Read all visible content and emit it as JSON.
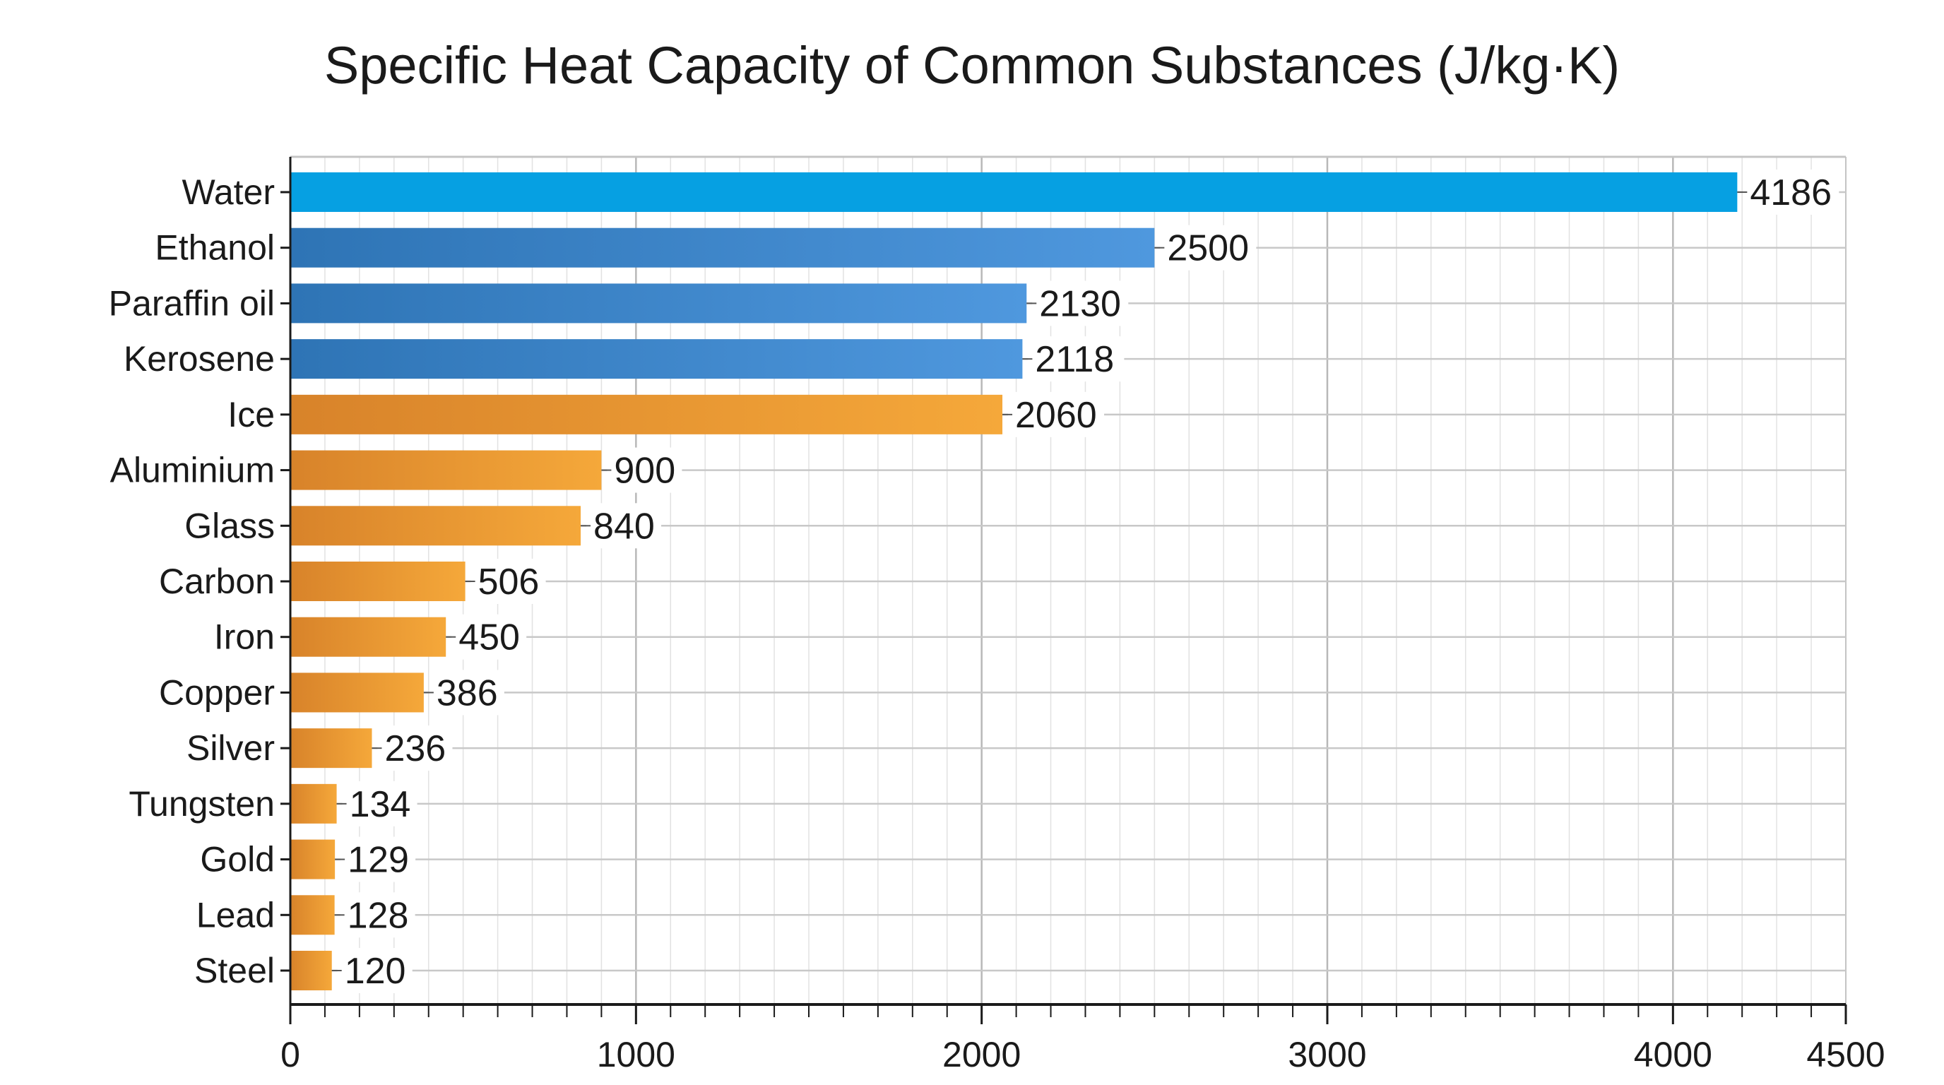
{
  "chart_data": {
    "type": "bar",
    "orientation": "horizontal",
    "title": "Specific Heat Capacity of Common Substances (J/kg·K)",
    "xlabel": "",
    "ylabel": "",
    "categories": [
      "Water",
      "Ethanol",
      "Paraffin oil",
      "Kerosene",
      "Ice",
      "Aluminium",
      "Glass",
      "Carbon",
      "Iron",
      "Copper",
      "Silver",
      "Tungsten",
      "Gold",
      "Lead",
      "Steel"
    ],
    "values": [
      4186,
      2500,
      2130,
      2118,
      2060,
      900,
      840,
      506,
      450,
      386,
      236,
      134,
      129,
      128,
      120
    ],
    "data_labels": [
      "4186",
      "2500",
      "2130",
      "2118",
      "2060",
      "900",
      "840",
      "506",
      "450",
      "386",
      "236",
      "134",
      "129",
      "128",
      "120"
    ],
    "bar_groups": [
      "water",
      "blue",
      "blue",
      "blue",
      "orange",
      "orange",
      "orange",
      "orange",
      "orange",
      "orange",
      "orange",
      "orange",
      "orange",
      "orange",
      "orange"
    ],
    "xlim": [
      0,
      4500
    ],
    "xticks": [
      0,
      1000,
      2000,
      3000,
      4000,
      4500
    ],
    "xtick_labels": [
      "0",
      "1000",
      "2000",
      "3000",
      "4000",
      "4500"
    ],
    "grid": true,
    "legend": "none",
    "colors": {
      "water": "#06a0e2",
      "blue_start": "#2e74b5",
      "blue_end": "#4f98de",
      "orange_start": "#d8832a",
      "orange_end": "#f5a83a",
      "grid": "#cfcfcf",
      "axis": "#1a1a1a"
    }
  }
}
